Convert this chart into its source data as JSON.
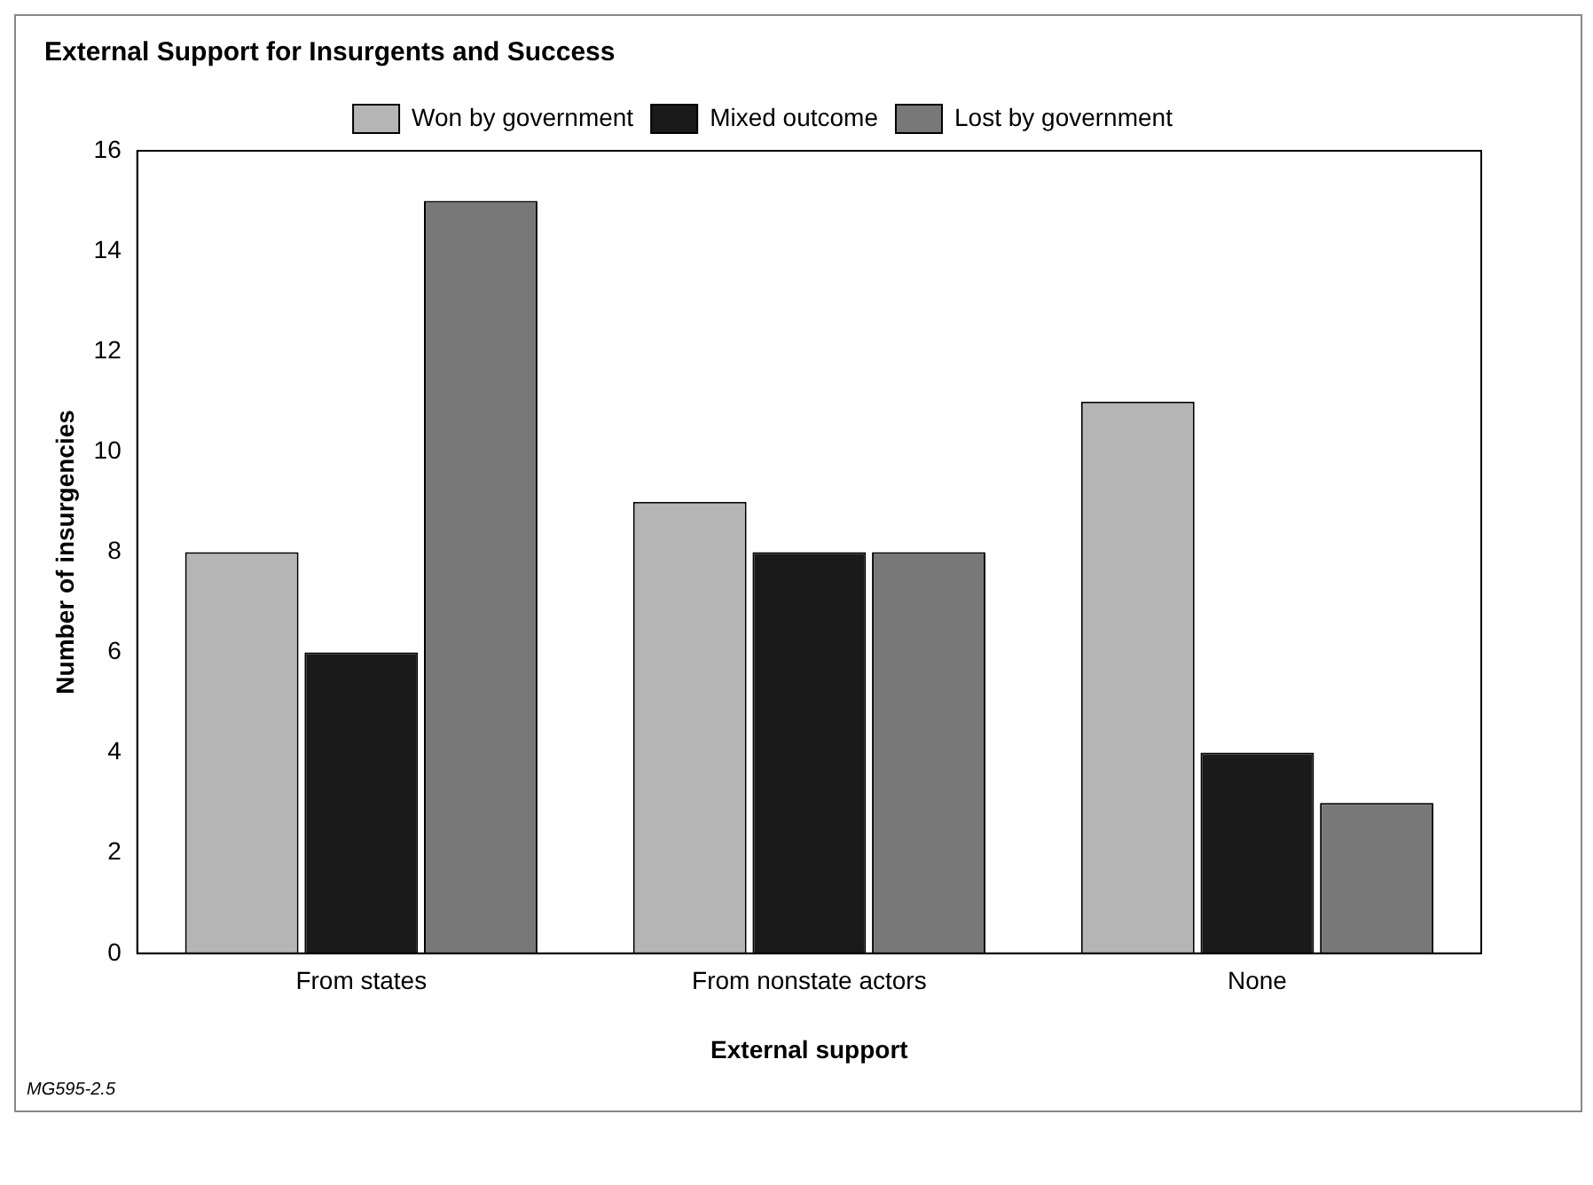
{
  "chart_data": {
    "type": "bar",
    "title": "External Support for Insurgents and Success",
    "xlabel": "External support",
    "ylabel": "Number of insurgencies",
    "categories": [
      "From states",
      "From nonstate actors",
      "None"
    ],
    "series": [
      {
        "name": "Won by government",
        "color": "#b5b5b5",
        "values": [
          8,
          9,
          11
        ]
      },
      {
        "name": "Mixed outcome",
        "color": "#1a1a1a",
        "values": [
          6,
          8,
          4
        ]
      },
      {
        "name": "Lost by government",
        "color": "#787878",
        "values": [
          15,
          8,
          3
        ]
      }
    ],
    "ylim": [
      0,
      16
    ],
    "yticks": [
      0,
      2,
      4,
      6,
      8,
      10,
      12,
      14,
      16
    ],
    "grid": false,
    "legend": "top",
    "annotations": [
      "MG595-2.5"
    ]
  }
}
